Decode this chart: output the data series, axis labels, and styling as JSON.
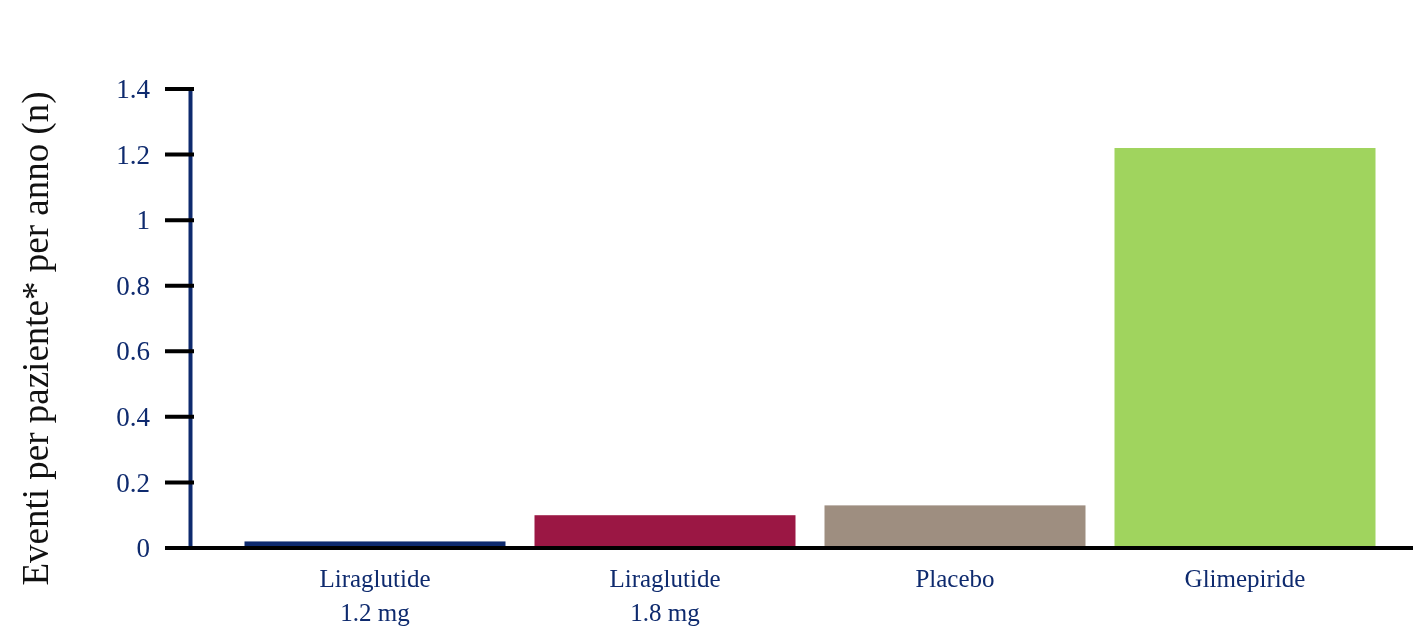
{
  "chart_data": {
    "type": "bar",
    "ylabel": "Eventi per paziente* per anno (n)",
    "categories": [
      "Liraglutide\n1.2 mg",
      "Liraglutide\n1.8 mg",
      "Placebo",
      "Glimepiride"
    ],
    "values": [
      0.02,
      0.1,
      0.13,
      1.22
    ],
    "colors": [
      "#0e2a6e",
      "#9b1744",
      "#9e8e80",
      "#a0d45e"
    ],
    "ylim": [
      0,
      1.4
    ],
    "yticks": [
      0,
      0.2,
      0.4,
      0.6,
      0.8,
      1,
      1.2,
      1.4
    ],
    "grid": false
  }
}
